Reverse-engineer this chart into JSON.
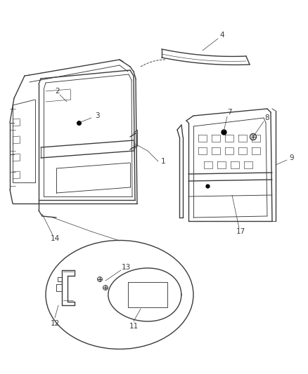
{
  "background_color": "#ffffff",
  "line_color": "#3a3a3a",
  "figsize": [
    4.38,
    5.33
  ],
  "dpi": 100,
  "font_size": 7.5
}
